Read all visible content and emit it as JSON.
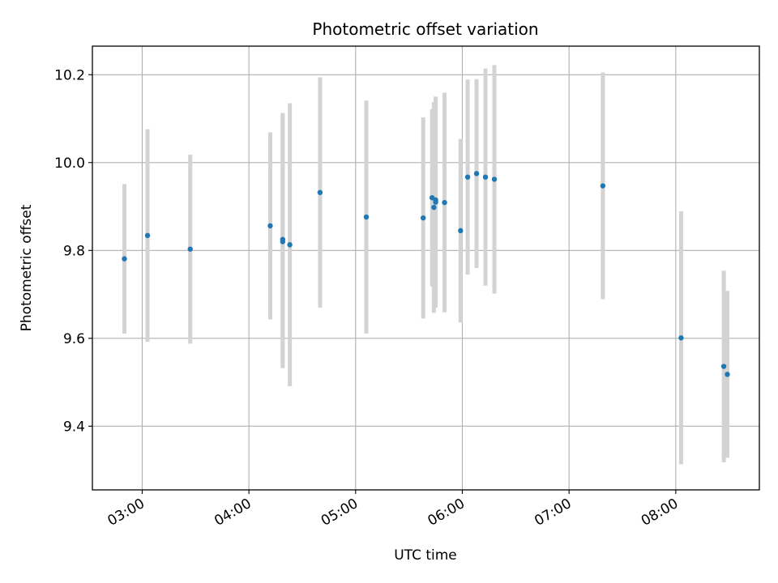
{
  "chart_data": {
    "type": "scatter",
    "title": "Photometric offset variation",
    "xlabel": "UTC time",
    "ylabel": "Photometric offset",
    "x_tick_labels": [
      "03:00",
      "04:00",
      "05:00",
      "06:00",
      "07:00",
      "08:00"
    ],
    "y_ticks": [
      9.4,
      9.6,
      9.8,
      10.0,
      10.2
    ],
    "y_tick_labels": [
      "9.4",
      "9.6",
      "9.8",
      "10.0",
      "10.2"
    ],
    "xlim": [
      "02:32",
      "08:47"
    ],
    "ylim": [
      9.255,
      10.265
    ],
    "grid": true,
    "point_color": "#1f77b4",
    "errorbar_color": "#d3d3d3",
    "points": [
      {
        "x": "02:50",
        "y": 9.781,
        "err": 0.17
      },
      {
        "x": "03:03",
        "y": 9.834,
        "err": 0.242
      },
      {
        "x": "03:27",
        "y": 9.803,
        "err": 0.215
      },
      {
        "x": "04:12",
        "y": 9.856,
        "err": 0.213
      },
      {
        "x": "04:19",
        "y": 9.825,
        "err": 0.288
      },
      {
        "x": "04:19",
        "y": 9.82,
        "err": 0.288
      },
      {
        "x": "04:23",
        "y": 9.813,
        "err": 0.322
      },
      {
        "x": "04:40",
        "y": 9.932,
        "err": 0.262
      },
      {
        "x": "05:06",
        "y": 9.876,
        "err": 0.265
      },
      {
        "x": "05:38",
        "y": 9.874,
        "err": 0.229
      },
      {
        "x": "05:43",
        "y": 9.92,
        "err": 0.202
      },
      {
        "x": "05:44",
        "y": 9.898,
        "err": 0.24
      },
      {
        "x": "05:45",
        "y": 9.915,
        "err": 0.235
      },
      {
        "x": "05:45",
        "y": 9.91,
        "err": 0.24
      },
      {
        "x": "05:50",
        "y": 9.909,
        "err": 0.25
      },
      {
        "x": "05:59",
        "y": 9.845,
        "err": 0.209
      },
      {
        "x": "06:03",
        "y": 9.967,
        "err": 0.222
      },
      {
        "x": "06:08",
        "y": 9.975,
        "err": 0.215
      },
      {
        "x": "06:13",
        "y": 9.967,
        "err": 0.247
      },
      {
        "x": "06:18",
        "y": 9.962,
        "err": 0.26
      },
      {
        "x": "07:19",
        "y": 9.947,
        "err": 0.258
      },
      {
        "x": "08:03",
        "y": 9.601,
        "err": 0.288
      },
      {
        "x": "08:27",
        "y": 9.536,
        "err": 0.218
      },
      {
        "x": "08:29",
        "y": 9.518,
        "err": 0.19
      }
    ]
  }
}
